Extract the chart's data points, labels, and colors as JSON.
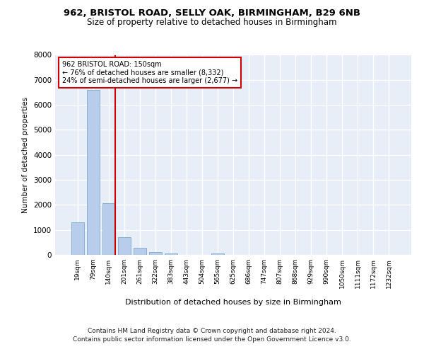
{
  "title1": "962, BRISTOL ROAD, SELLY OAK, BIRMINGHAM, B29 6NB",
  "title2": "Size of property relative to detached houses in Birmingham",
  "xlabel": "Distribution of detached houses by size in Birmingham",
  "ylabel": "Number of detached properties",
  "categories": [
    "19sqm",
    "79sqm",
    "140sqm",
    "201sqm",
    "261sqm",
    "322sqm",
    "383sqm",
    "443sqm",
    "504sqm",
    "565sqm",
    "625sqm",
    "686sqm",
    "747sqm",
    "807sqm",
    "868sqm",
    "929sqm",
    "990sqm",
    "1050sqm",
    "1111sqm",
    "1172sqm",
    "1232sqm"
  ],
  "values": [
    1300,
    6600,
    2080,
    700,
    290,
    110,
    60,
    0,
    0,
    60,
    0,
    0,
    0,
    0,
    0,
    0,
    0,
    0,
    0,
    0,
    0
  ],
  "bar_color": "#b8ccec",
  "bar_edge_color": "#7aaacf",
  "vline_color": "#cc0000",
  "vline_xindex": 2,
  "annotation_line1": "962 BRISTOL ROAD: 150sqm",
  "annotation_line2": "← 76% of detached houses are smaller (8,332)",
  "annotation_line3": "24% of semi-detached houses are larger (2,677) →",
  "annotation_box_facecolor": "#ffffff",
  "annotation_box_edgecolor": "#cc0000",
  "ylim": [
    0,
    8000
  ],
  "yticks": [
    0,
    1000,
    2000,
    3000,
    4000,
    5000,
    6000,
    7000,
    8000
  ],
  "bg_color": "#e8eef8",
  "grid_color": "#ffffff",
  "footer_line1": "Contains HM Land Registry data © Crown copyright and database right 2024.",
  "footer_line2": "Contains public sector information licensed under the Open Government Licence v3.0.",
  "fig_facecolor": "#ffffff"
}
